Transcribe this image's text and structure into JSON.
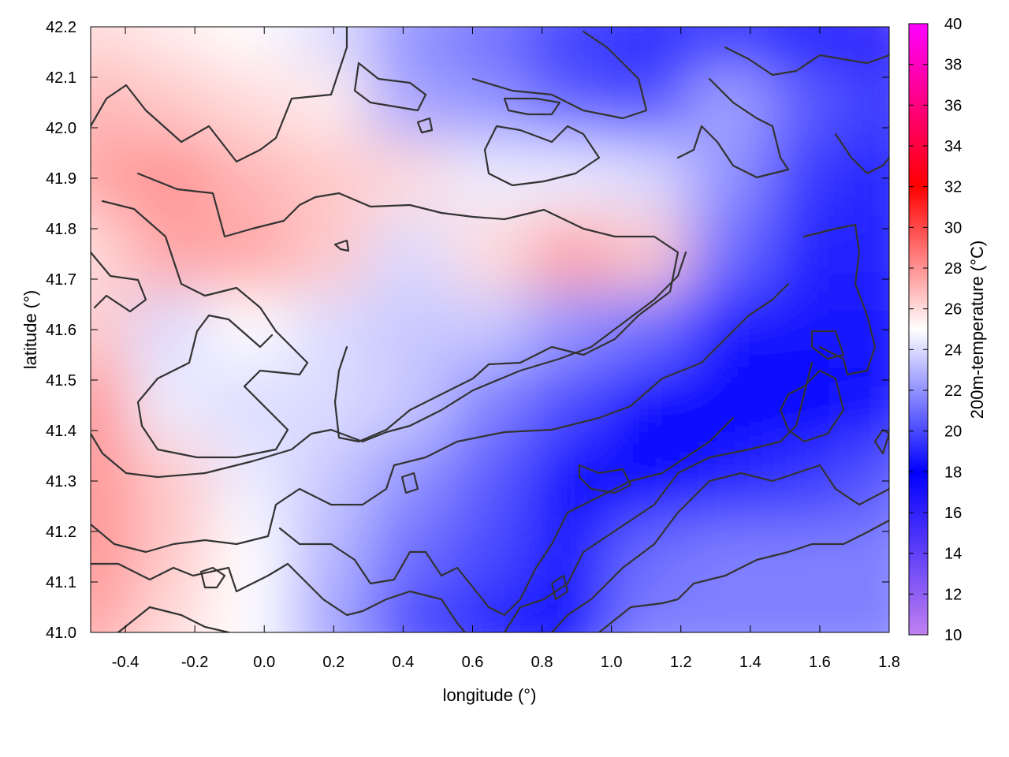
{
  "chart_data": {
    "type": "heatmap",
    "title": "",
    "xlabel": "longitude (°)",
    "ylabel": "latitude (°)",
    "colorbar_label": "200m-temperature (°C)",
    "xlim": [
      -0.5,
      1.8
    ],
    "ylim": [
      41.0,
      42.2
    ],
    "xticks": [
      -0.4,
      -0.2,
      0.0,
      0.2,
      0.4,
      0.6,
      0.8,
      1.0,
      1.2,
      1.4,
      1.6,
      1.8
    ],
    "xtick_labels": [
      "-0.4",
      "-0.2",
      "0.0",
      "0.2",
      "0.4",
      "0.6",
      "0.8",
      "1.0",
      "1.2",
      "1.4",
      "1.6",
      "1.8"
    ],
    "yticks": [
      41.0,
      41.1,
      41.2,
      41.3,
      41.4,
      41.5,
      41.6,
      41.7,
      41.8,
      41.9,
      42.0,
      42.1,
      42.2
    ],
    "ytick_labels": [
      "41.0",
      "41.1",
      "41.2",
      "41.3",
      "41.4",
      "41.5",
      "41.6",
      "41.7",
      "41.8",
      "41.9",
      "42.0",
      "42.1",
      "42.2"
    ],
    "colorbar_range": [
      10,
      40
    ],
    "colorbar_ticks": [
      10,
      12,
      14,
      16,
      18,
      20,
      22,
      24,
      26,
      28,
      30,
      32,
      34,
      36,
      38,
      40
    ],
    "colorbar_tick_labels": [
      "10",
      "12",
      "14",
      "16",
      "18",
      "20",
      "22",
      "24",
      "26",
      "28",
      "30",
      "32",
      "34",
      "36",
      "38",
      "40"
    ],
    "colormap": [
      {
        "value": 10,
        "color": "#c080f0"
      },
      {
        "value": 18,
        "color": "#0000ff"
      },
      {
        "value": 25,
        "color": "#ffffff"
      },
      {
        "value": 32,
        "color": "#ff0000"
      },
      {
        "value": 40,
        "color": "#ff00ff"
      }
    ],
    "grid": false,
    "temperature_field": {
      "lon": [
        -0.5,
        -0.27,
        -0.04,
        0.19,
        0.42,
        0.65,
        0.88,
        1.11,
        1.34,
        1.57,
        1.8
      ],
      "lat": [
        42.2,
        42.05,
        41.9,
        41.75,
        41.6,
        41.45,
        41.3,
        41.15,
        41.0
      ],
      "values": [
        [
          26.0,
          25.5,
          25.0,
          24.0,
          22.0,
          21.0,
          19.5,
          19.0,
          18.5,
          17.5,
          16.0
        ],
        [
          27.0,
          26.5,
          26.0,
          25.5,
          22.5,
          22.0,
          20.5,
          20.0,
          22.5,
          20.5,
          19.5
        ],
        [
          27.5,
          28.0,
          27.0,
          26.5,
          26.0,
          24.5,
          24.5,
          24.0,
          22.0,
          19.5,
          19.0
        ],
        [
          26.0,
          27.5,
          27.5,
          26.5,
          24.0,
          26.0,
          27.5,
          26.5,
          21.0,
          19.0,
          19.0
        ],
        [
          26.5,
          24.0,
          25.0,
          24.0,
          23.5,
          23.5,
          22.0,
          21.0,
          18.5,
          18.5,
          18.5
        ],
        [
          28.0,
          24.5,
          24.0,
          24.0,
          23.5,
          21.5,
          20.0,
          18.0,
          18.0,
          18.0,
          18.5
        ],
        [
          28.0,
          26.5,
          24.5,
          23.5,
          22.0,
          20.5,
          18.0,
          18.0,
          19.0,
          19.5,
          20.5
        ],
        [
          28.0,
          26.5,
          25.0,
          23.0,
          21.0,
          20.0,
          18.5,
          21.0,
          21.5,
          21.5,
          21.5
        ],
        [
          27.5,
          26.0,
          25.0,
          22.5,
          20.0,
          19.0,
          18.0,
          21.5,
          21.5,
          21.5,
          21.5
        ]
      ]
    }
  }
}
